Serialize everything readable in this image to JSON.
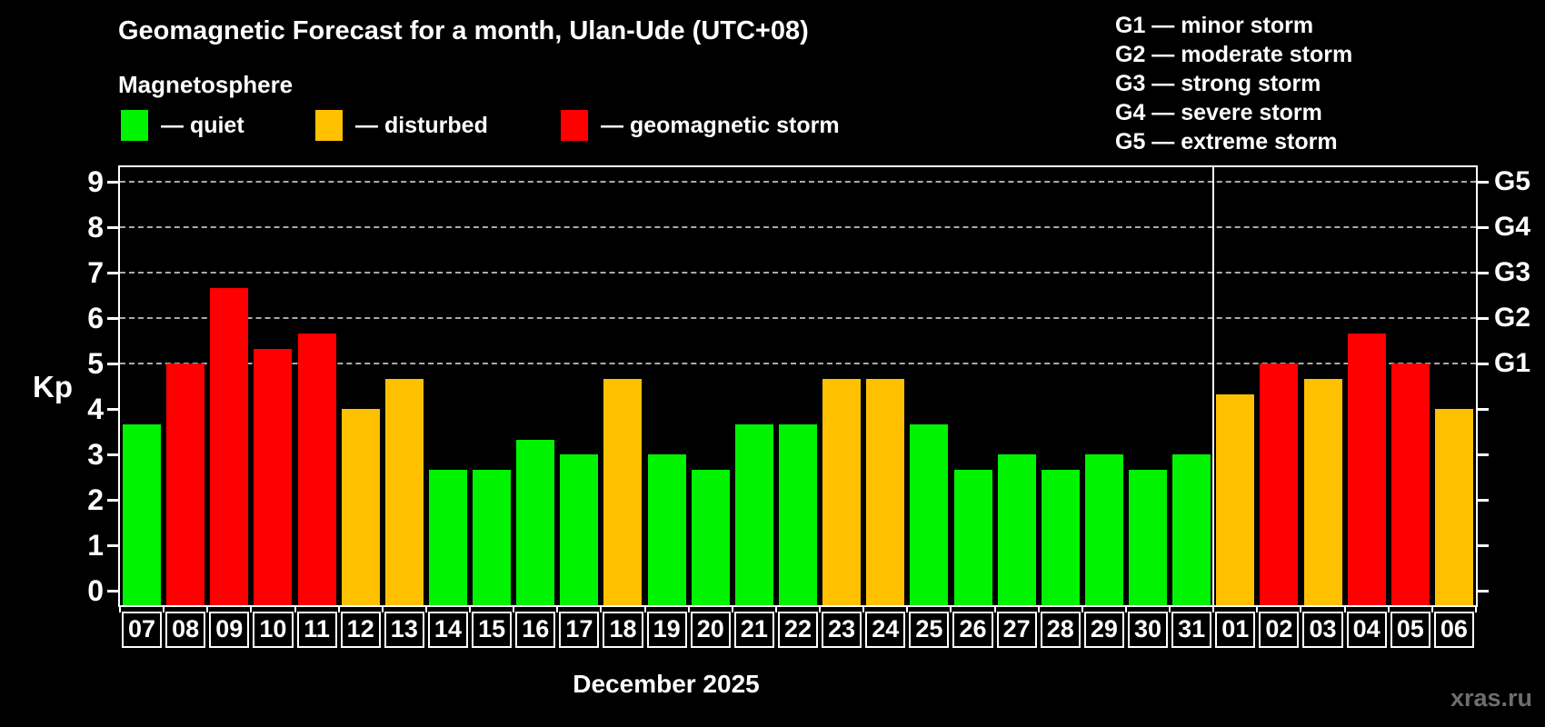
{
  "header": {
    "title": "Geomagnetic Forecast for a month, Ulan-Ude (UTC+08)",
    "subtitle": "Magnetosphere"
  },
  "legend": {
    "items": [
      {
        "key": "quiet",
        "label": "— quiet",
        "color": "#00f300"
      },
      {
        "key": "disturbed",
        "label": "— disturbed",
        "color": "#ffc000"
      },
      {
        "key": "storm",
        "label": "— geomagnetic storm",
        "color": "#ff0000"
      }
    ]
  },
  "gscale_legend": {
    "lines": [
      "G1 — minor storm",
      "G2 — moderate storm",
      "G3 — strong storm",
      "G4 — severe storm",
      "G5 — extreme storm"
    ]
  },
  "chart_data": {
    "type": "bar",
    "title": "Geomagnetic Forecast for a month, Ulan-Ude (UTC+08)",
    "subtitle": "Magnetosphere",
    "ylabel": "Kp",
    "xlabel": "December 2025",
    "ylim": [
      0,
      9
    ],
    "yticks": [
      0,
      1,
      2,
      3,
      4,
      5,
      6,
      7,
      8,
      9
    ],
    "grid": "dashed horizontal lines at Kp 5-9 only",
    "right_axis_labels": [
      {
        "value": 5,
        "label": "G1"
      },
      {
        "value": 6,
        "label": "G2"
      },
      {
        "value": 7,
        "label": "G3"
      },
      {
        "value": 8,
        "label": "G4"
      },
      {
        "value": 9,
        "label": "G5"
      }
    ],
    "status_colors": {
      "quiet": "#00f300",
      "disturbed": "#ffc000",
      "storm": "#ff0000"
    },
    "month_divider_after_index": 24,
    "categories": [
      "07",
      "08",
      "09",
      "10",
      "11",
      "12",
      "13",
      "14",
      "15",
      "16",
      "17",
      "18",
      "19",
      "20",
      "21",
      "22",
      "23",
      "24",
      "25",
      "26",
      "27",
      "28",
      "29",
      "30",
      "31",
      "01",
      "02",
      "03",
      "04",
      "05",
      "06"
    ],
    "series": [
      {
        "name": "Kp forecast",
        "values": [
          3.67,
          5.0,
          6.67,
          5.33,
          5.67,
          4.0,
          4.67,
          2.67,
          2.67,
          3.33,
          3.0,
          4.67,
          3.0,
          2.67,
          3.67,
          3.67,
          4.67,
          4.67,
          3.67,
          2.67,
          3.0,
          2.67,
          3.0,
          2.67,
          3.0,
          4.33,
          5.0,
          4.67,
          5.67,
          5.0,
          4.0
        ],
        "statuses": [
          "quiet",
          "storm",
          "storm",
          "storm",
          "storm",
          "disturbed",
          "disturbed",
          "quiet",
          "quiet",
          "quiet",
          "quiet",
          "disturbed",
          "quiet",
          "quiet",
          "quiet",
          "quiet",
          "disturbed",
          "disturbed",
          "quiet",
          "quiet",
          "quiet",
          "quiet",
          "quiet",
          "quiet",
          "quiet",
          "disturbed",
          "storm",
          "disturbed",
          "storm",
          "storm",
          "disturbed"
        ]
      }
    ],
    "caption": "December 2025"
  },
  "watermark": "xras.ru"
}
